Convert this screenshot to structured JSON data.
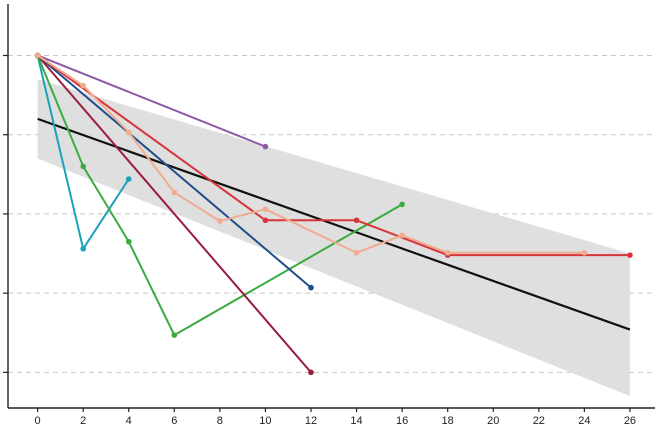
{
  "chart_data": {
    "type": "line",
    "title": "",
    "xlabel": "",
    "ylabel": "",
    "xlim": [
      -1.3,
      27.1
    ],
    "ylim": [
      -0.45,
      4.65
    ],
    "grid": "horizontal dashed",
    "x_ticks": [
      "0",
      "2",
      "4",
      "6",
      "8",
      "10",
      "12",
      "14",
      "16",
      "18",
      "20",
      "22",
      "24",
      "26"
    ],
    "y_ticks": [
      0,
      1,
      2,
      3,
      4
    ],
    "series": [
      {
        "name": "purple",
        "color": "#8e5ba6",
        "x": [
          0,
          10
        ],
        "y": [
          4.0,
          2.85
        ]
      },
      {
        "name": "teal",
        "color": "#1aa2b9",
        "x": [
          0,
          2,
          4
        ],
        "y": [
          4.0,
          1.56,
          2.44
        ]
      },
      {
        "name": "green",
        "color": "#3aab3f",
        "x": [
          0,
          2,
          4,
          6,
          16
        ],
        "y": [
          4.0,
          2.6,
          1.65,
          0.47,
          2.12
        ]
      },
      {
        "name": "dark-red",
        "color": "#9b1c3c",
        "x": [
          0,
          12
        ],
        "y": [
          4.0,
          0.0
        ]
      },
      {
        "name": "dark-blue",
        "color": "#1f4e8c",
        "x": [
          0,
          12
        ],
        "y": [
          4.0,
          1.07
        ]
      },
      {
        "name": "red",
        "color": "#d8343b",
        "x": [
          0,
          10,
          14,
          18,
          26
        ],
        "y": [
          4.0,
          1.92,
          1.92,
          1.48,
          1.48
        ]
      },
      {
        "name": "peach",
        "color": "#efac8e",
        "x": [
          0,
          2,
          4,
          6,
          8,
          10,
          14,
          16,
          18,
          24
        ],
        "y": [
          4.0,
          3.62,
          3.03,
          2.27,
          1.91,
          2.06,
          1.51,
          1.73,
          1.51,
          1.51
        ]
      }
    ],
    "trend": {
      "color": "#111111",
      "x": [
        0,
        26
      ],
      "y": [
        3.2,
        0.54
      ]
    },
    "confidence_band": {
      "color": "#d9d9d9",
      "x": [
        0,
        26
      ],
      "upper": [
        3.7,
        1.5
      ],
      "lower": [
        2.7,
        -0.3
      ]
    }
  }
}
